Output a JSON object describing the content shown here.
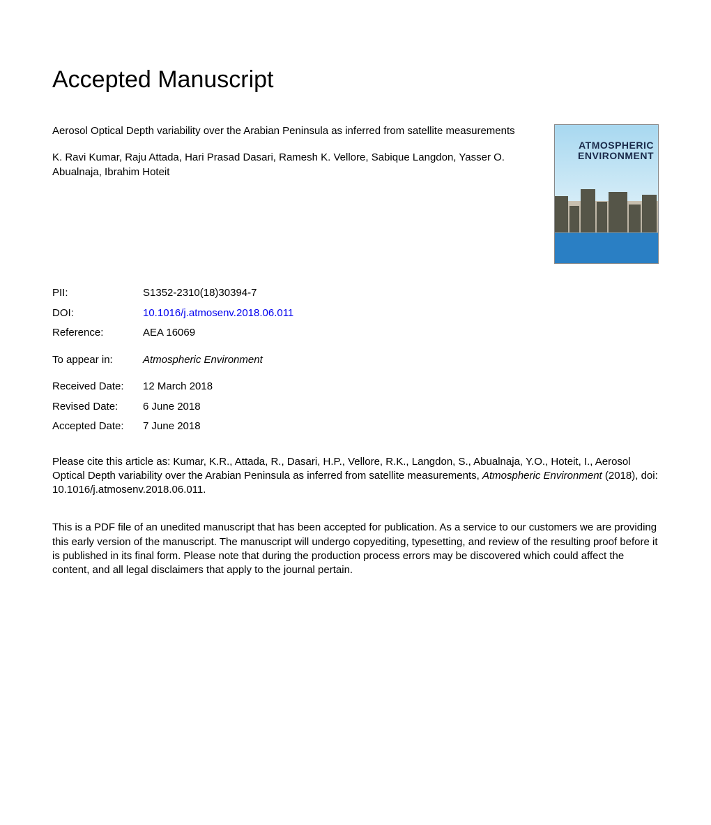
{
  "heading": "Accepted Manuscript",
  "paper": {
    "title": "Aerosol Optical Depth variability over the Arabian Peninsula as inferred from satellite measurements",
    "authors": "K. Ravi Kumar, Raju Attada, Hari Prasad Dasari, Ramesh K. Vellore, Sabique Langdon, Yasser O. Abualnaja, Ibrahim Hoteit"
  },
  "cover": {
    "journal_name_line1": "ATMOSPHERIC",
    "journal_name_line2": "ENVIRONMENT"
  },
  "meta": {
    "pii_label": "PII:",
    "pii_value": "S1352-2310(18)30394-7",
    "doi_label": "DOI:",
    "doi_value": "10.1016/j.atmosenv.2018.06.011",
    "ref_label": "Reference:",
    "ref_value": "AEA 16069",
    "appear_label": "To appear in:",
    "appear_value": "Atmospheric Environment",
    "received_label": "Received Date:",
    "received_value": "12 March 2018",
    "revised_label": "Revised Date:",
    "revised_value": "6 June 2018",
    "accepted_label": "Accepted Date:",
    "accepted_value": "7 June 2018"
  },
  "citation": {
    "prefix": "Please cite this article as: Kumar, K.R., Attada, R., Dasari, H.P., Vellore, R.K., Langdon, S., Abualnaja, Y.O., Hoteit, I., Aerosol Optical Depth variability over the Arabian Peninsula as inferred from satellite measurements, ",
    "journal": "Atmospheric Environment",
    "suffix": " (2018), doi: 10.1016/j.atmosenv.2018.06.011."
  },
  "disclaimer": "This is a PDF file of an unedited manuscript that has been accepted for publication. As a service to our customers we are providing this early version of the manuscript. The manuscript will undergo copyediting, typesetting, and review of the resulting proof before it is published in its final form. Please note that during the production process errors may be discovered which could affect the content, and all legal disclaimers that apply to the journal pertain.",
  "colors": {
    "text": "#000000",
    "link": "#0000ee",
    "background": "#ffffff"
  },
  "typography": {
    "heading_fontsize": 34,
    "body_fontsize": 15,
    "font_family": "Arial"
  }
}
